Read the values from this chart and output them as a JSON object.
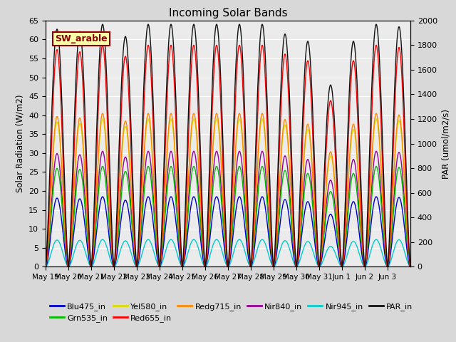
{
  "title": "Incoming Solar Bands",
  "ylabel_left": "Solar Radiation (W/m2)",
  "ylabel_right": "PAR (umol/m2/s)",
  "ylim_left": [
    0,
    65
  ],
  "ylim_right": [
    0,
    2000
  ],
  "yticks_left": [
    0,
    5,
    10,
    15,
    20,
    25,
    30,
    35,
    40,
    45,
    50,
    55,
    60,
    65
  ],
  "yticks_right": [
    0,
    200,
    400,
    600,
    800,
    1000,
    1200,
    1400,
    1600,
    1800,
    2000
  ],
  "n_days": 16,
  "annotation_text": "SW_arable",
  "annotation_color": "#8B0000",
  "annotation_bg": "#FFFFAA",
  "annotation_border": "#8B0000",
  "band_colors": {
    "Blu475_in": "#0000CC",
    "Grn535_in": "#00BB00",
    "Yel580_in": "#DDDD00",
    "Red655_in": "#FF0000",
    "Redg715_in": "#FF8800",
    "Nir840_in": "#990099",
    "Nir945_in": "#00CCCC",
    "PAR_in": "#111111"
  },
  "band_peaks": {
    "Blu475_in": 18.5,
    "Grn535_in": 26.5,
    "Yel580_in": 39.0,
    "Red655_in": 58.5,
    "Redg715_in": 40.5,
    "Nir840_in": 30.5,
    "Nir945_in": 7.2,
    "PAR_in": 64.0
  },
  "day_peaks": [
    0.98,
    0.97,
    1.0,
    0.95,
    1.0,
    1.0,
    1.0,
    1.0,
    1.0,
    1.0,
    0.96,
    0.93,
    0.75,
    0.93,
    1.0,
    0.99
  ],
  "background_color": "#D8D8D8",
  "plot_bg_color": "#EBEBEB",
  "grid_color": "white",
  "figsize": [
    6.4,
    4.8
  ],
  "dpi": 100
}
